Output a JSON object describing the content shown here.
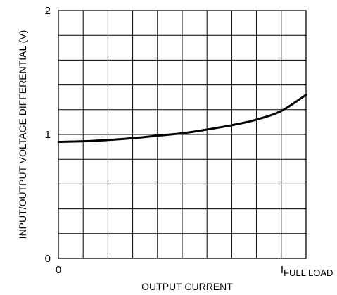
{
  "chart_data": {
    "type": "line",
    "xlabel": "OUTPUT CURRENT",
    "ylabel": "INPUT/OUTPUT VOLTAGE DIFFERENTIAL (V)",
    "xlim": [
      0,
      1
    ],
    "ylim": [
      0,
      2
    ],
    "x_tick_labels": [
      {
        "value": 0,
        "text": "0"
      },
      {
        "value": 0.889,
        "text": "I",
        "subscript": "FULL LOAD"
      }
    ],
    "y_tick_labels": [
      {
        "value": 0,
        "text": "0"
      },
      {
        "value": 1,
        "text": "1"
      },
      {
        "value": 2,
        "text": "2"
      }
    ],
    "grid": true,
    "grid_divisions": {
      "x": 10,
      "y": 10
    },
    "series": [
      {
        "x": [
          0,
          0.1,
          0.2,
          0.3,
          0.4,
          0.5,
          0.6,
          0.7,
          0.8,
          0.9,
          1.0
        ],
        "y": [
          0.94,
          0.945,
          0.955,
          0.97,
          0.99,
          1.01,
          1.04,
          1.075,
          1.12,
          1.19,
          1.32
        ]
      }
    ]
  }
}
